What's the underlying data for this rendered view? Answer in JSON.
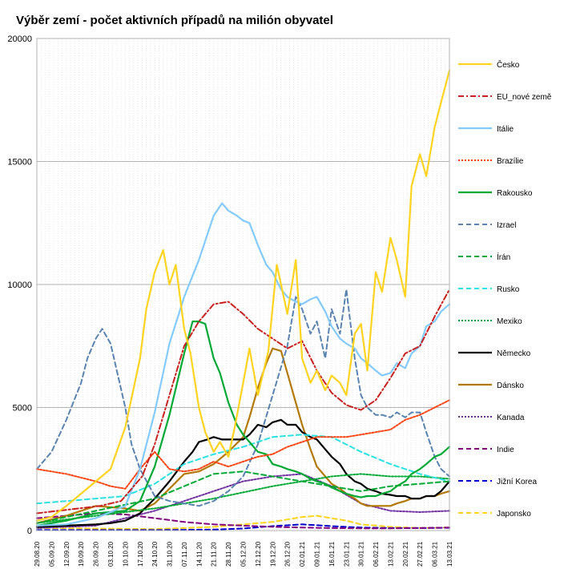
{
  "chart_data": {
    "type": "line",
    "title": "Výběr zemí - počet aktivních případů na milión obyvatel",
    "ylim": [
      0,
      20000
    ],
    "yticks": [
      0,
      5000,
      10000,
      15000,
      20000
    ],
    "ytick_labels": [
      "0",
      "5000",
      "10000",
      "15000",
      "20000"
    ],
    "xticks": [
      "29.08.20",
      "05.09.20",
      "12.09.20",
      "19.09.20",
      "26.09.20",
      "03.10.20",
      "10.10.20",
      "17.10.20",
      "24.10.20",
      "31.10.20",
      "07.11.20",
      "14.11.20",
      "21.11.20",
      "28.11.20",
      "05.12.20",
      "12.12.20",
      "19.12.20",
      "26.12.20",
      "02.01.21",
      "09.01.21",
      "16.01.21",
      "23.01.21",
      "30.01.21",
      "06.02.21",
      "13.02.21",
      "20.02.21",
      "27.02.21",
      "06.03.21",
      "13.03.21"
    ],
    "legend_position": "right",
    "grid": true,
    "series": [
      {
        "name": "Česko",
        "color": "#ffd320",
        "dash": "solid",
        "width": 2.2,
        "x": [
          0,
          7,
          14,
          21,
          28,
          35,
          42,
          49,
          52,
          56,
          60,
          63,
          66,
          70,
          73,
          77,
          80,
          84,
          87,
          91,
          94,
          98,
          101,
          105,
          110,
          114,
          119,
          123,
          126,
          130,
          133,
          137,
          140,
          144,
          147,
          151,
          154,
          157,
          161,
          164,
          168,
          171,
          175,
          178,
          182,
          185,
          189,
          192,
          196
        ],
        "y": [
          400,
          550,
          1000,
          1500,
          2000,
          2500,
          4200,
          7000,
          9000,
          10500,
          11400,
          10000,
          10800,
          8200,
          7200,
          5000,
          4000,
          3200,
          3600,
          3000,
          4200,
          6000,
          7400,
          5500,
          7300,
          10800,
          8800,
          11000,
          7000,
          6000,
          6500,
          5700,
          6300,
          6000,
          5500,
          8000,
          8400,
          6500,
          10500,
          9700,
          11900,
          11000,
          9500,
          14000,
          15300,
          14400,
          16400,
          17400,
          18700
        ]
      },
      {
        "name": "EU_nové země",
        "color": "#c9211e",
        "dash": "dashdot",
        "width": 2,
        "x": [
          0,
          10,
          20,
          30,
          40,
          50,
          56,
          63,
          70,
          77,
          84,
          91,
          98,
          105,
          112,
          119,
          126,
          133,
          140,
          147,
          154,
          161,
          168,
          175,
          182,
          189,
          196
        ],
        "y": [
          700,
          800,
          900,
          1000,
          1200,
          2200,
          3500,
          5500,
          7500,
          8500,
          9200,
          9300,
          8800,
          8200,
          7800,
          7400,
          7700,
          6500,
          5600,
          5100,
          4900,
          5300,
          6200,
          7200,
          7500,
          8700,
          9800
        ]
      },
      {
        "name": "Itálie",
        "color": "#83caff",
        "dash": "solid",
        "width": 2.2,
        "x": [
          0,
          14,
          28,
          42,
          49,
          56,
          63,
          70,
          77,
          84,
          88,
          91,
          95,
          98,
          101,
          105,
          109,
          112,
          116,
          119,
          123,
          126,
          130,
          133,
          137,
          140,
          144,
          147,
          151,
          154,
          157,
          161,
          164,
          168,
          171,
          175,
          178,
          182,
          185,
          189,
          192,
          196
        ],
        "y": [
          200,
          250,
          500,
          1000,
          2500,
          4800,
          7600,
          9500,
          11000,
          12800,
          13300,
          13000,
          12800,
          12600,
          12500,
          11600,
          10800,
          10500,
          9800,
          9500,
          9300,
          9200,
          9400,
          9500,
          8900,
          8300,
          7800,
          7600,
          7400,
          7000,
          6800,
          6500,
          6300,
          6400,
          6800,
          6600,
          7200,
          7500,
          8300,
          8500,
          8900,
          9200
        ]
      },
      {
        "name": "Brazílie",
        "color": "#ff420e",
        "dash": "dot",
        "width": 2,
        "x": [
          0,
          14,
          28,
          35,
          42,
          49,
          56,
          63,
          70,
          77,
          84,
          91,
          98,
          105,
          112,
          119,
          126,
          133,
          140,
          147,
          154,
          161,
          168,
          175,
          182,
          189,
          196
        ],
        "y": [
          2500,
          2300,
          2000,
          1800,
          1700,
          2500,
          3200,
          2500,
          2400,
          2500,
          2800,
          2600,
          2800,
          3000,
          3100,
          3400,
          3600,
          3800,
          3800,
          3800,
          3900,
          4000,
          4100,
          4500,
          4700,
          5000,
          5300
        ]
      },
      {
        "name": "Rakousko",
        "color": "#00a933",
        "dash": "solid",
        "width": 2.2,
        "x": [
          0,
          14,
          28,
          42,
          49,
          56,
          63,
          70,
          74,
          77,
          80,
          84,
          87,
          91,
          95,
          98,
          101,
          105,
          109,
          112,
          116,
          119,
          123,
          126,
          130,
          133,
          137,
          140,
          144,
          147,
          151,
          154,
          157,
          161,
          164,
          168,
          171,
          175,
          178,
          182,
          185,
          189,
          192,
          196
        ],
        "y": [
          200,
          400,
          700,
          800,
          1200,
          2600,
          4700,
          7200,
          8500,
          8500,
          8400,
          7000,
          6400,
          5200,
          4300,
          3900,
          3600,
          3200,
          3100,
          2700,
          2600,
          2500,
          2400,
          2300,
          2100,
          2000,
          1900,
          1750,
          1600,
          1500,
          1400,
          1350,
          1400,
          1400,
          1500,
          1600,
          1800,
          2000,
          2300,
          2500,
          2700,
          3000,
          3100,
          3400
        ]
      },
      {
        "name": "Izrael",
        "color": "#5983b0",
        "dash": "dash",
        "width": 2,
        "x": [
          0,
          7,
          14,
          21,
          24,
          28,
          31,
          35,
          38,
          42,
          45,
          49,
          56,
          63,
          70,
          77,
          84,
          91,
          98,
          105,
          112,
          119,
          123,
          126,
          130,
          133,
          137,
          140,
          144,
          147,
          151,
          154,
          157,
          161,
          164,
          168,
          171,
          175,
          178,
          182,
          185,
          189,
          192,
          196
        ],
        "y": [
          2500,
          3200,
          4500,
          6000,
          7000,
          7800,
          8200,
          7600,
          6500,
          5000,
          3500,
          2500,
          1400,
          1200,
          1100,
          1000,
          1200,
          1600,
          2200,
          3500,
          5500,
          7500,
          9500,
          9000,
          8000,
          8500,
          7000,
          9000,
          8000,
          9800,
          7000,
          5500,
          5000,
          4700,
          4700,
          4600,
          4800,
          4600,
          4800,
          4800,
          4000,
          3000,
          2500,
          2200
        ]
      },
      {
        "name": "Írán",
        "color": "#00a933",
        "dash": "dash",
        "width": 2,
        "x": [
          0,
          28,
          56,
          70,
          84,
          98,
          112,
          126,
          140,
          154,
          168,
          182,
          196
        ],
        "y": [
          300,
          800,
          1300,
          1800,
          2300,
          2400,
          2200,
          2000,
          1800,
          1600,
          1800,
          1900,
          2000
        ]
      },
      {
        "name": "Rusko",
        "color": "#2ae1e3",
        "dash": "dash",
        "width": 2,
        "x": [
          0,
          14,
          28,
          42,
          56,
          70,
          84,
          98,
          112,
          126,
          140,
          154,
          168,
          182,
          196
        ],
        "y": [
          1100,
          1200,
          1300,
          1400,
          1900,
          2700,
          3100,
          3400,
          3800,
          3900,
          3800,
          3200,
          2700,
          2300,
          2000
        ]
      },
      {
        "name": "Mexiko",
        "color": "#00a933",
        "dash": "dot",
        "width": 2,
        "x": [
          0,
          28,
          56,
          84,
          112,
          126,
          140,
          154,
          168,
          182,
          196
        ],
        "y": [
          300,
          600,
          900,
          1300,
          1800,
          2000,
          2200,
          2300,
          2200,
          2200,
          2100
        ]
      },
      {
        "name": "Německo",
        "color": "#000000",
        "dash": "solid",
        "width": 2.2,
        "x": [
          0,
          14,
          28,
          35,
          42,
          49,
          56,
          63,
          70,
          74,
          77,
          81,
          84,
          88,
          91,
          95,
          98,
          101,
          105,
          109,
          112,
          116,
          119,
          123,
          126,
          130,
          133,
          137,
          140,
          144,
          147,
          151,
          154,
          157,
          161,
          164,
          168,
          171,
          175,
          178,
          182,
          185,
          189,
          192,
          196
        ],
        "y": [
          150,
          200,
          250,
          300,
          400,
          700,
          1300,
          2000,
          2800,
          3200,
          3600,
          3700,
          3800,
          3700,
          3700,
          3700,
          3700,
          3900,
          4300,
          4200,
          4400,
          4500,
          4300,
          4300,
          4000,
          3800,
          3700,
          3300,
          3000,
          2700,
          2300,
          2000,
          1900,
          1700,
          1600,
          1500,
          1450,
          1400,
          1400,
          1300,
          1300,
          1400,
          1400,
          1600,
          2000
        ]
      },
      {
        "name": "Dánsko",
        "color": "#b47804",
        "dash": "solid",
        "width": 2.2,
        "x": [
          0,
          14,
          28,
          42,
          49,
          56,
          63,
          70,
          77,
          84,
          91,
          98,
          101,
          105,
          109,
          112,
          116,
          119,
          123,
          126,
          130,
          133,
          137,
          140,
          144,
          147,
          151,
          154,
          157,
          161,
          164,
          168,
          171,
          175,
          178,
          182,
          185,
          189,
          192,
          196
        ],
        "y": [
          300,
          600,
          1000,
          900,
          800,
          1100,
          1700,
          2300,
          2400,
          2700,
          3200,
          3800,
          4600,
          5800,
          6800,
          7400,
          7300,
          6400,
          5200,
          4300,
          3300,
          2600,
          2200,
          1900,
          1700,
          1500,
          1300,
          1100,
          1000,
          1000,
          1000,
          1000,
          1100,
          1200,
          1300,
          1300,
          1400,
          1400,
          1500,
          1600
        ]
      },
      {
        "name": "Kanada",
        "color": "#7030a0",
        "dash": "dot",
        "width": 2,
        "x": [
          0,
          28,
          56,
          70,
          84,
          98,
          112,
          126,
          140,
          154,
          168,
          182,
          196
        ],
        "y": [
          100,
          200,
          800,
          1200,
          1600,
          2000,
          2200,
          2300,
          1800,
          1100,
          800,
          750,
          800
        ]
      },
      {
        "name": "Indie",
        "color": "#800080",
        "dash": "dash",
        "width": 2,
        "x": [
          0,
          14,
          28,
          42,
          56,
          70,
          84,
          98,
          112,
          126,
          140,
          154,
          168,
          182,
          196
        ],
        "y": [
          500,
          600,
          700,
          650,
          500,
          350,
          250,
          200,
          150,
          120,
          100,
          90,
          90,
          100,
          120
        ]
      },
      {
        "name": "Jižní Korea",
        "color": "#0000cc",
        "dash": "dash",
        "width": 2,
        "x": [
          0,
          28,
          56,
          84,
          98,
          112,
          126,
          140,
          154,
          168,
          182,
          196
        ],
        "y": [
          20,
          20,
          20,
          40,
          80,
          180,
          250,
          180,
          120,
          100,
          100,
          110
        ]
      },
      {
        "name": "Japonsko",
        "color": "#ffd320",
        "dash": "dash",
        "width": 2,
        "x": [
          0,
          28,
          56,
          84,
          98,
          112,
          119,
          126,
          133,
          140,
          147,
          154,
          168,
          182,
          196
        ],
        "y": [
          100,
          80,
          60,
          150,
          250,
          350,
          450,
          550,
          600,
          500,
          400,
          250,
          150,
          100,
          120
        ]
      }
    ]
  }
}
